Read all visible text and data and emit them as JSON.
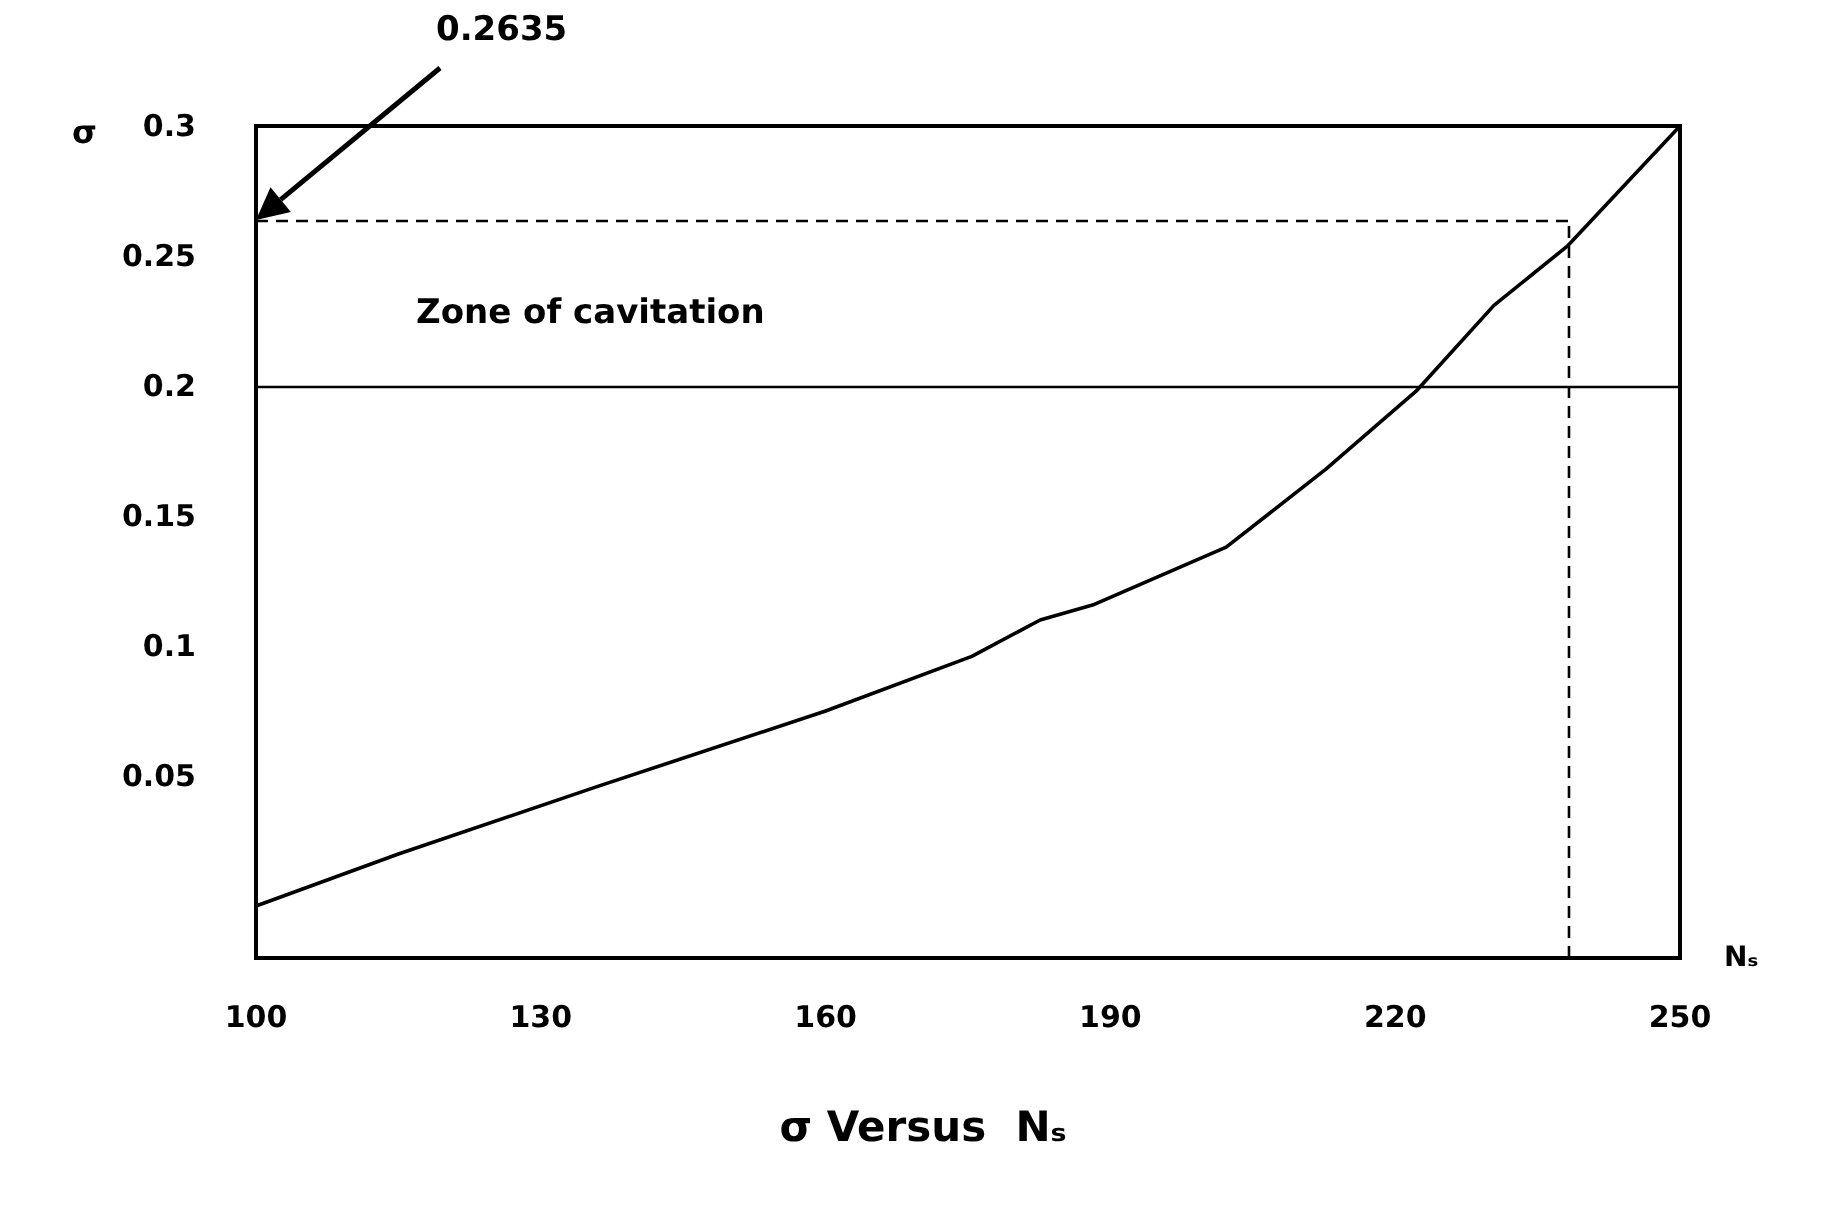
{
  "chart_data": {
    "type": "line",
    "title": "σ Versus  Nₛ",
    "xlabel": "Nₛ",
    "ylabel": "σ",
    "x": [
      100,
      115,
      136,
      160,
      175.4,
      182.6,
      188.3,
      202.2,
      212.7,
      222.2,
      230.4,
      238.2,
      250
    ],
    "series": [
      {
        "color": "#000000",
        "values": [
          0.0,
          0.02,
          0.046,
          0.075,
          0.096,
          0.11,
          0.116,
          0.138,
          0.168,
          0.198,
          0.231,
          0.254,
          0.3
        ]
      }
    ],
    "xlim": [
      100,
      250
    ],
    "xticks": [
      100,
      130,
      160,
      190,
      220,
      250
    ],
    "ylim": [
      -0.02,
      0.3
    ],
    "yticks": [
      0.05,
      0.1,
      0.15,
      0.2,
      0.25,
      0.3
    ],
    "annotations": [
      "0.2635"
    ],
    "ref_lines": [
      {
        "axis": "y",
        "value": 0.2,
        "label": "Zone of cavitation",
        "line_style": "solid"
      },
      {
        "axis": "y",
        "value": 0.2635,
        "line_style": "dashed"
      },
      {
        "axis": "x",
        "value": 238.2,
        "line_style": "dashed"
      }
    ],
    "grid": false,
    "marker": "none",
    "line_style": "solid"
  }
}
